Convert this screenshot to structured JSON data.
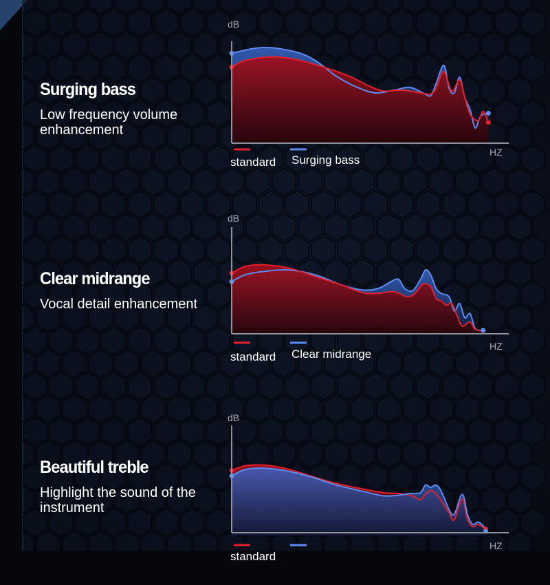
{
  "colors": {
    "standard": "#e3202c",
    "enhanced": "#5b8cf2",
    "axis": "#8f949c",
    "background": "#05070d"
  },
  "sections": [
    {
      "title": "Surging bass",
      "description": "Low frequency volume enhancement",
      "legend": {
        "standard": "standard",
        "enhanced": "Surging bass"
      }
    },
    {
      "title": "Clear midrange",
      "description": "Vocal detail enhancement",
      "legend": {
        "standard": "standard",
        "enhanced": "Clear midrange"
      }
    },
    {
      "title": "Beautiful treble",
      "description": "Highlight the sound of the instrument",
      "legend": {
        "standard": "standard",
        "enhanced": ""
      }
    }
  ],
  "chart_data": [
    {
      "type": "area",
      "ylabel": "dB",
      "xlabel": "HZ",
      "xlim": [
        0,
        100
      ],
      "ylim": [
        0,
        100
      ],
      "grid": false,
      "legend_position": "bottom-left",
      "series": [
        {
          "name": "standard",
          "points": [
            [
              0,
              78
            ],
            [
              5,
              85
            ],
            [
              15,
              89
            ],
            [
              25,
              86
            ],
            [
              35,
              78
            ],
            [
              45,
              68
            ],
            [
              52,
              58
            ],
            [
              58,
              52
            ],
            [
              64,
              53
            ],
            [
              68,
              52
            ],
            [
              72,
              50
            ],
            [
              76,
              49
            ],
            [
              78,
              55
            ],
            [
              81,
              73
            ],
            [
              84,
              52
            ],
            [
              87,
              64
            ],
            [
              89,
              45
            ],
            [
              91,
              27
            ],
            [
              94,
              20
            ],
            [
              96,
              30
            ],
            [
              98,
              18
            ]
          ]
        },
        {
          "name": "Surging bass",
          "points": [
            [
              0,
              93
            ],
            [
              8,
              98
            ],
            [
              15,
              99
            ],
            [
              25,
              94
            ],
            [
              32,
              85
            ],
            [
              40,
              68
            ],
            [
              48,
              56
            ],
            [
              55,
              50
            ],
            [
              62,
              53
            ],
            [
              68,
              56
            ],
            [
              73,
              50
            ],
            [
              76,
              47
            ],
            [
              78,
              60
            ],
            [
              81,
              80
            ],
            [
              83,
              55
            ],
            [
              85,
              50
            ],
            [
              87,
              67
            ],
            [
              89,
              45
            ],
            [
              91,
              32
            ],
            [
              93,
              12
            ],
            [
              95,
              25
            ],
            [
              98,
              28
            ]
          ]
        }
      ]
    },
    {
      "type": "area",
      "ylabel": "dB",
      "xlabel": "HZ",
      "xlim": [
        0,
        100
      ],
      "ylim": [
        0,
        100
      ],
      "grid": false,
      "legend_position": "bottom-left",
      "series": [
        {
          "name": "standard",
          "points": [
            [
              0,
              68
            ],
            [
              5,
              76
            ],
            [
              12,
              78
            ],
            [
              22,
              74
            ],
            [
              32,
              64
            ],
            [
              42,
              54
            ],
            [
              50,
              45
            ],
            [
              56,
              44
            ],
            [
              62,
              46
            ],
            [
              67,
              40
            ],
            [
              70,
              44
            ],
            [
              73,
              55
            ],
            [
              76,
              52
            ],
            [
              78,
              38
            ],
            [
              80,
              35
            ],
            [
              82,
              30
            ],
            [
              84,
              32
            ],
            [
              86,
              18
            ],
            [
              88,
              5
            ],
            [
              91,
              10
            ],
            [
              93,
              1
            ],
            [
              96,
              0
            ]
          ]
        },
        {
          "name": "Clear midrange",
          "points": [
            [
              0,
              58
            ],
            [
              5,
              66
            ],
            [
              12,
              70
            ],
            [
              22,
              72
            ],
            [
              32,
              66
            ],
            [
              42,
              54
            ],
            [
              50,
              48
            ],
            [
              56,
              50
            ],
            [
              62,
              60
            ],
            [
              64,
              60
            ],
            [
              66,
              50
            ],
            [
              69,
              47
            ],
            [
              72,
              60
            ],
            [
              74,
              72
            ],
            [
              76,
              66
            ],
            [
              78,
              50
            ],
            [
              80,
              44
            ],
            [
              83,
              40
            ],
            [
              85,
              23
            ],
            [
              87,
              32
            ],
            [
              89,
              15
            ],
            [
              91,
              20
            ],
            [
              93,
              2
            ],
            [
              96,
              0
            ]
          ]
        }
      ]
    },
    {
      "type": "area",
      "ylabel": "dB",
      "xlabel": "HZ",
      "xlim": [
        0,
        100
      ],
      "ylim": [
        0,
        100
      ],
      "grid": false,
      "legend_position": "bottom-left",
      "series": [
        {
          "name": "standard",
          "points": [
            [
              0,
              79
            ],
            [
              5,
              85
            ],
            [
              12,
              86
            ],
            [
              20,
              82
            ],
            [
              30,
              72
            ],
            [
              40,
              62
            ],
            [
              50,
              55
            ],
            [
              58,
              50
            ],
            [
              64,
              49
            ],
            [
              69,
              46
            ],
            [
              72,
              41
            ],
            [
              74,
              48
            ],
            [
              76,
              53
            ],
            [
              78,
              49
            ],
            [
              80,
              40
            ],
            [
              83,
              24
            ],
            [
              85,
              15
            ],
            [
              88,
              42
            ],
            [
              90,
              16
            ],
            [
              92,
              6
            ],
            [
              94,
              9
            ],
            [
              97,
              3
            ]
          ]
        },
        {
          "name": "",
          "points": [
            [
              0,
              72
            ],
            [
              5,
              80
            ],
            [
              12,
              82
            ],
            [
              20,
              79
            ],
            [
              30,
              71
            ],
            [
              40,
              60
            ],
            [
              50,
              52
            ],
            [
              58,
              46
            ],
            [
              64,
              47
            ],
            [
              68,
              49
            ],
            [
              72,
              50
            ],
            [
              74,
              60
            ],
            [
              76,
              57
            ],
            [
              78,
              60
            ],
            [
              80,
              52
            ],
            [
              83,
              28
            ],
            [
              85,
              22
            ],
            [
              88,
              48
            ],
            [
              90,
              22
            ],
            [
              92,
              9
            ],
            [
              94,
              12
            ],
            [
              96,
              7
            ],
            [
              97,
              0
            ]
          ]
        }
      ]
    }
  ]
}
